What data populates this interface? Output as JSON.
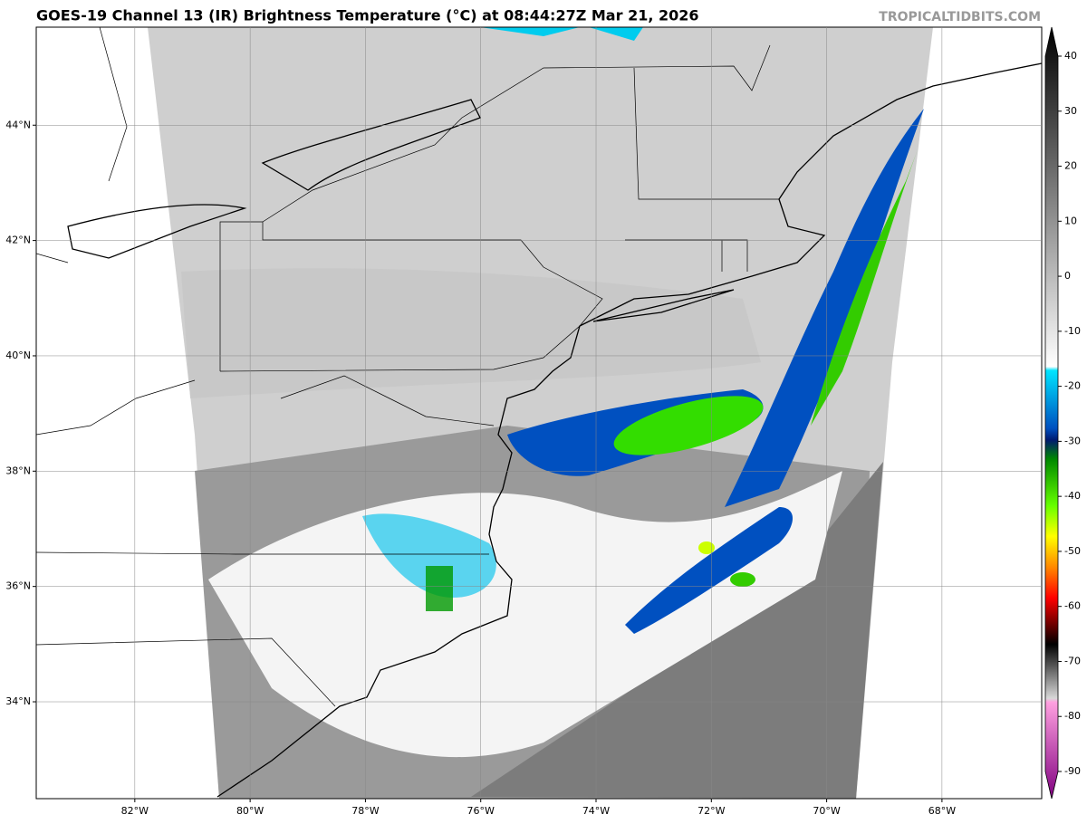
{
  "title": "GOES-19 Channel 13 (IR) Brightness Temperature (°C) at 08:44:27Z Mar 21, 2026",
  "watermark": "TROPICALTIDBITS.COM",
  "map": {
    "xlim": [
      -83.71,
      -66.27
    ],
    "ylim": [
      32.32,
      45.7
    ],
    "xticks": [
      {
        "value": -82,
        "label": "82°W"
      },
      {
        "value": -80,
        "label": "80°W"
      },
      {
        "value": -78,
        "label": "78°W"
      },
      {
        "value": -76,
        "label": "76°W"
      },
      {
        "value": -74,
        "label": "74°W"
      },
      {
        "value": -72,
        "label": "72°W"
      },
      {
        "value": -70,
        "label": "70°W"
      },
      {
        "value": -68,
        "label": "68°W"
      }
    ],
    "yticks": [
      {
        "value": 34,
        "label": "34°N"
      },
      {
        "value": 36,
        "label": "36°N"
      },
      {
        "value": 38,
        "label": "38°N"
      },
      {
        "value": 40,
        "label": "40°N"
      },
      {
        "value": 42,
        "label": "42°N"
      },
      {
        "value": 44,
        "label": "44°N"
      }
    ]
  },
  "colorbar": {
    "lim": [
      -90,
      40
    ],
    "ticks": [
      -90,
      -80,
      -70,
      -60,
      -50,
      -40,
      -30,
      -20,
      -10,
      0,
      10,
      20,
      30,
      40
    ]
  }
}
